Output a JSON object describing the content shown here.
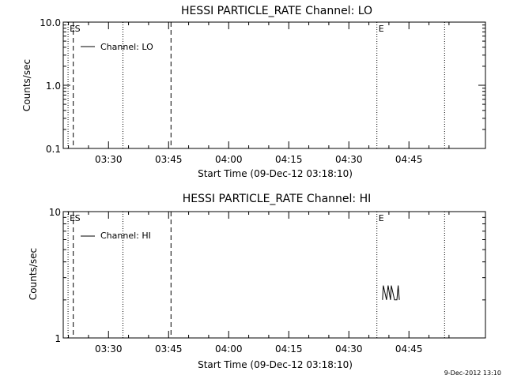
{
  "footer_timestamp": "9-Dec-2012 13:10",
  "chart_data": [
    {
      "type": "line",
      "title": "HESSI PARTICLE_RATE Channel: LO",
      "xlabel": "Start Time (09-Dec-12 03:18:10)",
      "ylabel": "Counts/sec",
      "yscale": "log",
      "ylim": [
        0.1,
        10.0
      ],
      "xlim": [
        198.7,
        304.1
      ],
      "y_ticks": [
        {
          "v": 0.1,
          "label": "0.1"
        },
        {
          "v": 1.0,
          "label": "1.0"
        },
        {
          "v": 10.0,
          "label": "10.0"
        }
      ],
      "x_ticks": [
        {
          "v": 210,
          "label": "03:30"
        },
        {
          "v": 225,
          "label": "03:45"
        },
        {
          "v": 240,
          "label": "04:00"
        },
        {
          "v": 255,
          "label": "04:15"
        },
        {
          "v": 270,
          "label": "04:30"
        },
        {
          "v": 285,
          "label": "04:45"
        }
      ],
      "legend": {
        "position": "top-left",
        "entries": [
          "Channel: LO"
        ]
      },
      "markers": [
        {
          "v": 199.9,
          "style": "dotted",
          "label": "E"
        },
        {
          "v": 201.2,
          "style": "dashed",
          "label": "S"
        },
        {
          "v": 213.6,
          "style": "dotted",
          "label": ""
        },
        {
          "v": 225.6,
          "style": "dashed",
          "label": ""
        },
        {
          "v": 277.0,
          "style": "dotted",
          "label": "E"
        },
        {
          "v": 293.9,
          "style": "dotted",
          "label": ""
        }
      ],
      "series": [
        {
          "name": "Channel: LO",
          "x": [],
          "y": []
        }
      ]
    },
    {
      "type": "line",
      "title": "HESSI PARTICLE_RATE Channel: HI",
      "xlabel": "Start Time (09-Dec-12 03:18:10)",
      "ylabel": "Counts/sec",
      "yscale": "log",
      "ylim": [
        1,
        10
      ],
      "xlim": [
        198.7,
        304.1
      ],
      "y_ticks": [
        {
          "v": 1,
          "label": "1"
        },
        {
          "v": 10,
          "label": "10"
        }
      ],
      "x_ticks": [
        {
          "v": 210,
          "label": "03:30"
        },
        {
          "v": 225,
          "label": "03:45"
        },
        {
          "v": 240,
          "label": "04:00"
        },
        {
          "v": 255,
          "label": "04:15"
        },
        {
          "v": 270,
          "label": "04:30"
        },
        {
          "v": 285,
          "label": "04:45"
        }
      ],
      "legend": {
        "position": "top-left",
        "entries": [
          "Channel: HI"
        ]
      },
      "markers": [
        {
          "v": 199.9,
          "style": "dotted",
          "label": "E"
        },
        {
          "v": 201.2,
          "style": "dashed",
          "label": "S"
        },
        {
          "v": 213.6,
          "style": "dotted",
          "label": ""
        },
        {
          "v": 225.6,
          "style": "dashed",
          "label": ""
        },
        {
          "v": 277.0,
          "style": "dotted",
          "label": "E"
        },
        {
          "v": 293.9,
          "style": "dotted",
          "label": ""
        }
      ],
      "series": [
        {
          "name": "Channel: HI",
          "x": [
            278.4,
            278.6,
            279.4,
            279.8,
            280.4,
            280.6,
            281.4,
            282.0,
            282.3,
            282.6
          ],
          "y": [
            2.0,
            2.6,
            2.0,
            2.6,
            2.0,
            2.6,
            2.0,
            2.0,
            2.6,
            2.0
          ]
        }
      ]
    }
  ]
}
